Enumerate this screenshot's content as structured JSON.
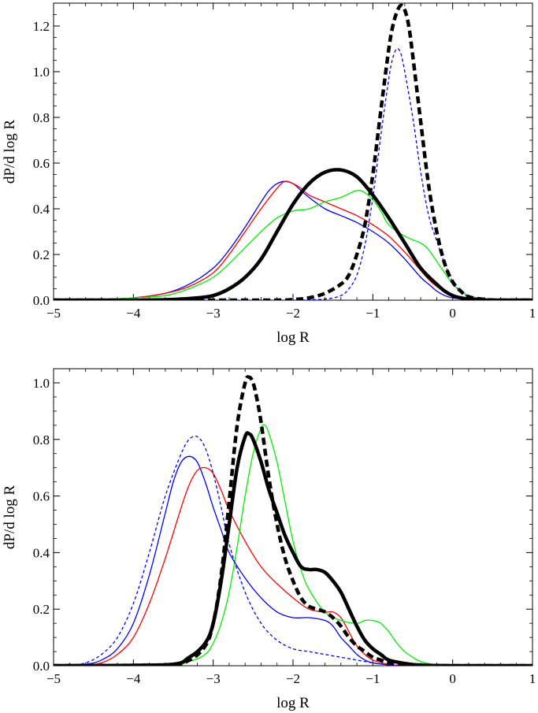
{
  "chart_data": [
    {
      "type": "line",
      "xlabel": "log R",
      "ylabel": "dP/d log R",
      "xlim": [
        -5,
        1
      ],
      "ylim": [
        0,
        1.3
      ],
      "xticks": [
        -5,
        -4,
        -3,
        -2,
        -1,
        0,
        1
      ],
      "yticks": [
        0.0,
        0.2,
        0.4,
        0.6,
        0.8,
        1.0,
        1.2
      ],
      "xtick_labels": [
        "−5",
        "−4",
        "−3",
        "−2",
        "−1",
        "0",
        "1"
      ],
      "ytick_labels": [
        "0.0",
        "0.2",
        "0.4",
        "0.6",
        "0.8",
        "1.0",
        "1.2"
      ],
      "grid": false,
      "series": [
        {
          "color": "#0000ff",
          "style": "solid",
          "weight": "thin",
          "x": [
            -5,
            -4.5,
            -4,
            -3.6,
            -3.3,
            -3,
            -2.8,
            -2.6,
            -2.4,
            -2.3,
            -2.2,
            -2.1,
            -2,
            -1.9,
            -1.8,
            -1.6,
            -1.4,
            -1.2,
            -1,
            -0.8,
            -0.6,
            -0.4,
            -0.3,
            -0.2,
            -0.1,
            0,
            0.2,
            0.4,
            0.6,
            0.8,
            1
          ],
          "y": [
            0,
            0.002,
            0.01,
            0.03,
            0.07,
            0.14,
            0.22,
            0.32,
            0.43,
            0.48,
            0.51,
            0.52,
            0.51,
            0.48,
            0.45,
            0.4,
            0.37,
            0.34,
            0.3,
            0.25,
            0.18,
            0.1,
            0.07,
            0.04,
            0.02,
            0.01,
            0.003,
            0.001,
            0,
            0,
            0
          ]
        },
        {
          "color": "#ff0000",
          "style": "solid",
          "weight": "thin",
          "x": [
            -5,
            -4.5,
            -4,
            -3.6,
            -3.3,
            -3,
            -2.8,
            -2.6,
            -2.4,
            -2.2,
            -2.1,
            -2,
            -1.9,
            -1.8,
            -1.6,
            -1.4,
            -1.2,
            -1,
            -0.8,
            -0.6,
            -0.4,
            -0.3,
            -0.2,
            -0.1,
            0,
            0.2,
            0.4,
            0.6,
            0.8,
            1
          ],
          "y": [
            0,
            0.002,
            0.01,
            0.03,
            0.06,
            0.12,
            0.2,
            0.3,
            0.4,
            0.49,
            0.52,
            0.51,
            0.49,
            0.46,
            0.43,
            0.4,
            0.37,
            0.33,
            0.28,
            0.21,
            0.13,
            0.09,
            0.06,
            0.04,
            0.02,
            0.006,
            0.002,
            0,
            0,
            0
          ]
        },
        {
          "color": "#00ee00",
          "style": "solid",
          "weight": "thin",
          "x": [
            -5,
            -4.5,
            -4,
            -3.6,
            -3.3,
            -3,
            -2.8,
            -2.6,
            -2.4,
            -2.2,
            -2,
            -1.8,
            -1.6,
            -1.4,
            -1.2,
            -1.1,
            -1,
            -0.9,
            -0.8,
            -0.6,
            -0.4,
            -0.3,
            -0.2,
            -0.1,
            0,
            0.1,
            0.2,
            0.4,
            0.6,
            0.8,
            1
          ],
          "y": [
            0,
            0.002,
            0.01,
            0.02,
            0.05,
            0.1,
            0.16,
            0.23,
            0.3,
            0.36,
            0.39,
            0.4,
            0.43,
            0.45,
            0.48,
            0.47,
            0.44,
            0.39,
            0.33,
            0.28,
            0.25,
            0.22,
            0.17,
            0.12,
            0.07,
            0.04,
            0.02,
            0.005,
            0.002,
            0,
            0
          ]
        },
        {
          "color": "#0000ff",
          "style": "dashed",
          "weight": "thin",
          "x": [
            -5,
            -3,
            -2,
            -1.6,
            -1.4,
            -1.3,
            -1.2,
            -1.1,
            -1,
            -0.9,
            -0.8,
            -0.75,
            -0.7,
            -0.65,
            -0.6,
            -0.5,
            -0.4,
            -0.3,
            -0.2,
            -0.1,
            0,
            0.1,
            0.2,
            0.4,
            0.6,
            1
          ],
          "y": [
            0,
            0,
            0,
            0.005,
            0.02,
            0.05,
            0.11,
            0.24,
            0.45,
            0.72,
            0.97,
            1.06,
            1.1,
            1.08,
            1.0,
            0.8,
            0.56,
            0.37,
            0.26,
            0.16,
            0.08,
            0.04,
            0.015,
            0.003,
            0,
            0
          ]
        },
        {
          "color": "#000000",
          "style": "solid",
          "weight": "thick",
          "x": [
            -5,
            -4,
            -3.5,
            -3.2,
            -3,
            -2.8,
            -2.6,
            -2.4,
            -2.2,
            -2,
            -1.8,
            -1.6,
            -1.4,
            -1.2,
            -1,
            -0.8,
            -0.6,
            -0.4,
            -0.2,
            -0.1,
            0,
            0.1,
            0.2,
            0.4,
            0.6,
            1
          ],
          "y": [
            0,
            0,
            0.003,
            0.01,
            0.02,
            0.05,
            0.1,
            0.18,
            0.3,
            0.42,
            0.51,
            0.56,
            0.57,
            0.54,
            0.46,
            0.36,
            0.25,
            0.14,
            0.07,
            0.04,
            0.02,
            0.01,
            0.005,
            0.001,
            0,
            0
          ]
        },
        {
          "color": "#000000",
          "style": "dashed",
          "weight": "thick",
          "x": [
            -5,
            -2.4,
            -2,
            -1.8,
            -1.6,
            -1.4,
            -1.3,
            -1.2,
            -1.1,
            -1,
            -0.9,
            -0.8,
            -0.75,
            -0.7,
            -0.65,
            -0.6,
            -0.55,
            -0.5,
            -0.4,
            -0.3,
            -0.2,
            -0.1,
            0,
            0.1,
            0.2,
            0.4,
            0.6,
            1
          ],
          "y": [
            0,
            0,
            0.003,
            0.01,
            0.03,
            0.07,
            0.11,
            0.2,
            0.33,
            0.55,
            0.83,
            1.1,
            1.2,
            1.26,
            1.29,
            1.27,
            1.2,
            1.07,
            0.78,
            0.5,
            0.3,
            0.16,
            0.08,
            0.04,
            0.015,
            0.003,
            0,
            0
          ]
        }
      ]
    },
    {
      "type": "line",
      "xlabel": "log R",
      "ylabel": "dP/d log R",
      "xlim": [
        -5,
        1
      ],
      "ylim": [
        0,
        1.05
      ],
      "xticks": [
        -5,
        -4,
        -3,
        -2,
        -1,
        0,
        1
      ],
      "yticks": [
        0.0,
        0.2,
        0.4,
        0.6,
        0.8,
        1.0
      ],
      "xtick_labels": [
        "−5",
        "−4",
        "−3",
        "−2",
        "−1",
        "0",
        "1"
      ],
      "ytick_labels": [
        "0.0",
        "0.2",
        "0.4",
        "0.6",
        "0.8",
        "1.0"
      ],
      "grid": false,
      "series": [
        {
          "color": "#0000ff",
          "style": "solid",
          "weight": "thin",
          "x": [
            -5,
            -4.6,
            -4.4,
            -4.2,
            -4,
            -3.8,
            -3.6,
            -3.5,
            -3.4,
            -3.3,
            -3.2,
            -3.1,
            -3,
            -2.9,
            -2.8,
            -2.6,
            -2.4,
            -2.2,
            -2,
            -1.8,
            -1.6,
            -1.5,
            -1.4,
            -1.3,
            -1.2,
            -1.1,
            -1,
            -0.8,
            -0.6,
            -0.4,
            0,
            1
          ],
          "y": [
            0,
            0.005,
            0.02,
            0.06,
            0.15,
            0.32,
            0.54,
            0.65,
            0.72,
            0.74,
            0.72,
            0.65,
            0.56,
            0.48,
            0.4,
            0.31,
            0.24,
            0.19,
            0.17,
            0.17,
            0.16,
            0.14,
            0.1,
            0.07,
            0.04,
            0.02,
            0.01,
            0.003,
            0,
            0,
            0,
            0
          ]
        },
        {
          "color": "#ff0000",
          "style": "solid",
          "weight": "thin",
          "x": [
            -5,
            -4.6,
            -4.4,
            -4.2,
            -4,
            -3.8,
            -3.6,
            -3.4,
            -3.3,
            -3.2,
            -3.1,
            -3,
            -2.9,
            -2.8,
            -2.6,
            -2.4,
            -2.2,
            -2,
            -1.8,
            -1.6,
            -1.5,
            -1.4,
            -1.3,
            -1.2,
            -1.1,
            -1,
            -0.8,
            -0.6,
            0,
            1
          ],
          "y": [
            0,
            0.003,
            0.01,
            0.04,
            0.1,
            0.22,
            0.38,
            0.56,
            0.64,
            0.69,
            0.7,
            0.68,
            0.62,
            0.55,
            0.44,
            0.35,
            0.29,
            0.24,
            0.2,
            0.19,
            0.19,
            0.17,
            0.12,
            0.07,
            0.04,
            0.02,
            0.005,
            0.001,
            0,
            0
          ]
        },
        {
          "color": "#00ee00",
          "style": "solid",
          "weight": "thin",
          "x": [
            -5,
            -3.6,
            -3.3,
            -3.1,
            -3,
            -2.9,
            -2.8,
            -2.7,
            -2.6,
            -2.5,
            -2.4,
            -2.35,
            -2.3,
            -2.2,
            -2.1,
            -2,
            -1.9,
            -1.8,
            -1.6,
            -1.4,
            -1.2,
            -1.1,
            -1,
            -0.9,
            -0.8,
            -0.7,
            -0.6,
            -0.5,
            -0.4,
            -0.2,
            0,
            1
          ],
          "y": [
            0,
            0.002,
            0.015,
            0.04,
            0.08,
            0.15,
            0.26,
            0.42,
            0.6,
            0.75,
            0.84,
            0.85,
            0.82,
            0.72,
            0.58,
            0.44,
            0.34,
            0.27,
            0.19,
            0.16,
            0.15,
            0.16,
            0.16,
            0.15,
            0.12,
            0.08,
            0.05,
            0.03,
            0.015,
            0.003,
            0,
            0
          ]
        },
        {
          "color": "#0000ff",
          "style": "dashed",
          "weight": "thin",
          "x": [
            -5,
            -4.8,
            -4.6,
            -4.4,
            -4.2,
            -4,
            -3.8,
            -3.6,
            -3.4,
            -3.3,
            -3.2,
            -3.1,
            -3,
            -2.9,
            -2.8,
            -2.6,
            -2.4,
            -2.2,
            -2,
            -1.8,
            -1.6,
            -1.4,
            -1.2,
            -1,
            -0.8,
            -0.6,
            -0.4,
            0,
            1
          ],
          "y": [
            0,
            0.002,
            0.01,
            0.04,
            0.1,
            0.22,
            0.4,
            0.6,
            0.75,
            0.8,
            0.81,
            0.77,
            0.68,
            0.56,
            0.43,
            0.26,
            0.15,
            0.09,
            0.06,
            0.05,
            0.04,
            0.03,
            0.02,
            0.01,
            0.003,
            0.001,
            0,
            0,
            0
          ]
        },
        {
          "color": "#000000",
          "style": "solid",
          "weight": "thick",
          "x": [
            -5,
            -3.6,
            -3.3,
            -3.1,
            -3,
            -2.9,
            -2.8,
            -2.7,
            -2.6,
            -2.55,
            -2.5,
            -2.4,
            -2.3,
            -2.2,
            -2.1,
            -2,
            -1.9,
            -1.8,
            -1.7,
            -1.6,
            -1.5,
            -1.4,
            -1.3,
            -1.2,
            -1.1,
            -1,
            -0.9,
            -0.8,
            -0.6,
            -0.4,
            0,
            1
          ],
          "y": [
            0,
            0.003,
            0.03,
            0.08,
            0.15,
            0.3,
            0.5,
            0.7,
            0.81,
            0.82,
            0.8,
            0.72,
            0.62,
            0.54,
            0.46,
            0.4,
            0.35,
            0.34,
            0.34,
            0.33,
            0.3,
            0.26,
            0.2,
            0.14,
            0.09,
            0.06,
            0.04,
            0.02,
            0.008,
            0.002,
            0,
            0
          ]
        },
        {
          "color": "#000000",
          "style": "dashed",
          "weight": "thick",
          "x": [
            -5,
            -3.6,
            -3.3,
            -3.1,
            -3,
            -2.9,
            -2.8,
            -2.7,
            -2.6,
            -2.55,
            -2.5,
            -2.45,
            -2.4,
            -2.3,
            -2.2,
            -2.1,
            -2,
            -1.9,
            -1.8,
            -1.7,
            -1.6,
            -1.5,
            -1.4,
            -1.3,
            -1.2,
            -1.1,
            -1,
            -0.9,
            -0.8,
            -0.6,
            -0.4,
            0,
            1
          ],
          "y": [
            0,
            0.003,
            0.02,
            0.07,
            0.15,
            0.32,
            0.58,
            0.85,
            1.0,
            1.02,
            1.0,
            0.94,
            0.86,
            0.66,
            0.5,
            0.38,
            0.3,
            0.24,
            0.21,
            0.2,
            0.19,
            0.17,
            0.14,
            0.1,
            0.07,
            0.05,
            0.03,
            0.02,
            0.01,
            0.003,
            0.001,
            0,
            0
          ]
        }
      ]
    }
  ]
}
